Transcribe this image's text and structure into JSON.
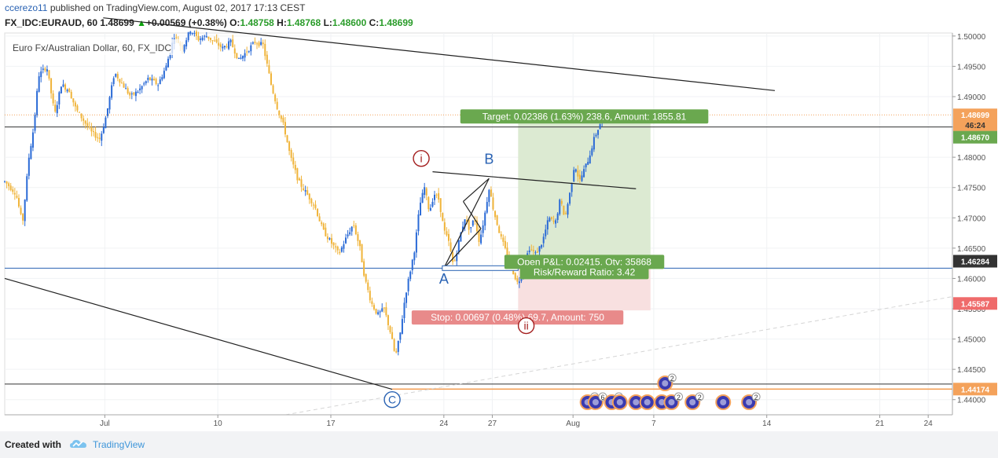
{
  "header": {
    "author": "ccerezo11",
    "published": " published on TradingView.com, August 02, 2017 17:13 CEST",
    "symbol": "FX_IDC:EURAUD, 60",
    "last": "1.48699",
    "change": "+0.00569 (+0.38%)",
    "o_label": "O:",
    "o_value": "1.48758",
    "h_label": "H:",
    "h_value": "1.48768",
    "l_label": "L:",
    "l_value": "1.48600",
    "c_label": "C:",
    "c_value": "1.48699"
  },
  "footer": {
    "created_with": "Created with",
    "brand": "TradingView"
  },
  "colors": {
    "up": "#2a6ad6",
    "down": "#f0b43a",
    "target": "#6aa84f",
    "stop": "#e88a8a",
    "orange": "#f4a25b",
    "pivot": "#a31d1d",
    "wave": "#2962b3"
  },
  "chart_data": {
    "type": "candlestick",
    "title": "Euro Fx/Australian Dollar, 60, FX_IDC",
    "ylim": [
      1.4375,
      1.5005
    ],
    "y_ticks": [
      "1.50000",
      "1.49500",
      "1.49000",
      "1.48500",
      "1.48000",
      "1.47500",
      "1.47000",
      "1.46500",
      "1.46000",
      "1.45500",
      "1.45000",
      "1.44500",
      "1.44000"
    ],
    "x_ticks": [
      {
        "label": "Jul",
        "day": 3
      },
      {
        "label": "10",
        "day": 10
      },
      {
        "label": "17",
        "day": 17
      },
      {
        "label": "24",
        "day": 24
      },
      {
        "label": "27",
        "day": 27
      },
      {
        "label": "Aug",
        "day": 32
      },
      {
        "label": "7",
        "day": 37
      },
      {
        "label": "14",
        "day": 44
      },
      {
        "label": "21",
        "day": 51
      },
      {
        "label": "24",
        "day": 54
      }
    ],
    "xlim_days": [
      -3.2,
      55.5
    ],
    "price_path": [
      [
        -3.2,
        1.476
      ],
      [
        -2.5,
        1.474
      ],
      [
        -2.1,
        1.469
      ],
      [
        -1.7,
        1.48
      ],
      [
        -1.4,
        1.485
      ],
      [
        -1.1,
        1.4935
      ],
      [
        -0.6,
        1.495
      ],
      [
        -0.1,
        1.487
      ],
      [
        0.3,
        1.492
      ],
      [
        0.8,
        1.491
      ],
      [
        1.2,
        1.488
      ],
      [
        1.7,
        1.486
      ],
      [
        2.2,
        1.484
      ],
      [
        2.7,
        1.483
      ],
      [
        3.1,
        1.487
      ],
      [
        3.6,
        1.494
      ],
      [
        4.1,
        1.492
      ],
      [
        4.6,
        1.49
      ],
      [
        5.1,
        1.491
      ],
      [
        5.7,
        1.493
      ],
      [
        6.3,
        1.492
      ],
      [
        6.8,
        1.495
      ],
      [
        7.3,
        1.5
      ],
      [
        7.8,
        1.498
      ],
      [
        8.3,
        1.501
      ],
      [
        8.8,
        1.4995
      ],
      [
        9.3,
        1.5
      ],
      [
        9.8,
        1.499
      ],
      [
        10.3,
        1.498
      ],
      [
        10.8,
        1.499
      ],
      [
        11.3,
        1.496
      ],
      [
        11.8,
        1.4975
      ],
      [
        12.3,
        1.499
      ],
      [
        12.8,
        1.4985
      ],
      [
        13.3,
        1.492
      ],
      [
        13.7,
        1.488
      ],
      [
        14.1,
        1.485
      ],
      [
        14.5,
        1.48
      ],
      [
        15.0,
        1.476
      ],
      [
        15.5,
        1.474
      ],
      [
        16.0,
        1.472
      ],
      [
        16.5,
        1.468
      ],
      [
        17.0,
        1.466
      ],
      [
        17.5,
        1.464
      ],
      [
        18.0,
        1.467
      ],
      [
        18.4,
        1.469
      ],
      [
        18.8,
        1.465
      ],
      [
        19.1,
        1.46
      ],
      [
        19.5,
        1.456
      ],
      [
        19.9,
        1.454
      ],
      [
        20.3,
        1.455
      ],
      [
        20.7,
        1.451
      ],
      [
        21.0,
        1.447
      ],
      [
        21.3,
        1.451
      ],
      [
        21.6,
        1.457
      ],
      [
        21.9,
        1.461
      ],
      [
        22.2,
        1.465
      ],
      [
        22.5,
        1.472
      ],
      [
        22.8,
        1.475
      ],
      [
        23.1,
        1.471
      ],
      [
        23.4,
        1.474
      ],
      [
        23.7,
        1.473
      ],
      [
        24.0,
        1.468
      ],
      [
        24.3,
        1.466
      ],
      [
        24.6,
        1.462
      ],
      [
        25.0,
        1.467
      ],
      [
        25.3,
        1.47
      ],
      [
        25.6,
        1.468
      ],
      [
        25.9,
        1.47
      ],
      [
        26.2,
        1.466
      ],
      [
        26.5,
        1.47
      ],
      [
        26.8,
        1.475
      ],
      [
        27.1,
        1.471
      ],
      [
        27.5,
        1.467
      ],
      [
        27.9,
        1.464
      ],
      [
        28.3,
        1.461
      ],
      [
        28.6,
        1.459
      ],
      [
        28.9,
        1.462
      ],
      [
        29.3,
        1.465
      ],
      [
        29.7,
        1.464
      ],
      [
        30.1,
        1.466
      ],
      [
        30.5,
        1.47
      ],
      [
        30.9,
        1.469
      ],
      [
        31.2,
        1.473
      ],
      [
        31.5,
        1.47
      ],
      [
        31.8,
        1.474
      ],
      [
        32.1,
        1.479
      ],
      [
        32.4,
        1.476
      ],
      [
        32.7,
        1.478
      ],
      [
        33.0,
        1.48
      ],
      [
        33.3,
        1.483
      ],
      [
        33.6,
        1.485
      ],
      [
        33.9,
        1.487
      ],
      [
        34.2,
        1.487
      ]
    ],
    "trend_lines": [
      {
        "from": [
          2.9,
          1.503
        ],
        "to": [
          44.5,
          1.491
        ]
      },
      {
        "from": [
          -3.2,
          1.46
        ],
        "to": [
          20.8,
          1.4417
        ]
      },
      {
        "from": [
          23.3,
          1.4776
        ],
        "to": [
          35.9,
          1.4748
        ]
      },
      {
        "from": [
          24.0,
          1.4617
        ],
        "to": [
          26.8,
          1.4765
        ],
        "kind": "channel"
      },
      {
        "from": [
          25.2,
          1.4727
        ],
        "to": [
          26.8,
          1.4765
        ],
        "kind": "channel"
      },
      {
        "from": [
          24.0,
          1.4617
        ],
        "to": [
          26.3,
          1.4682
        ],
        "kind": "channel"
      },
      {
        "from": [
          25.2,
          1.4727
        ],
        "to": [
          26.3,
          1.4682
        ],
        "kind": "channel"
      }
    ],
    "dashed_line": {
      "from": [
        14.2,
        1.4375
      ],
      "to": [
        55.5,
        1.457
      ]
    },
    "h_lines": [
      {
        "price": 1.485,
        "color": "#333333",
        "style": "solid"
      },
      {
        "price": 1.4617,
        "color": "#2962b3",
        "style": "solid"
      },
      {
        "price": 1.44257,
        "color": "#333333",
        "style": "solid"
      },
      {
        "price": 1.44174,
        "color": "#f4a25b",
        "style": "solid",
        "x_from": 20.8
      },
      {
        "price": 1.48699,
        "color": "#f4a25b",
        "style": "dotted"
      }
    ],
    "position": {
      "x_from": 28.6,
      "x_to": 36.8,
      "entry": 1.4617,
      "target": 1.48556,
      "stop": 1.45473,
      "target_label": "Target: 0.02386 (1.63%) 238.6, Amount: 1855.81",
      "stop_label": "Stop: 0.00697 (0.48%) 69.7, Amount: 750",
      "pnl_label": "Open P&L: 0.02415, Qty: 35868",
      "rr_label": "Risk/Reward Ratio: 3.42"
    },
    "waves": [
      {
        "label": "i",
        "x": 22.6,
        "price": 1.4798,
        "style": "circle",
        "color": "#a31d1d"
      },
      {
        "label": "ii",
        "x": 29.1,
        "price": 1.4522,
        "style": "circle",
        "color": "#a31d1d"
      },
      {
        "label": "A",
        "x": 24.0,
        "price": 1.4599,
        "style": "text",
        "color": "#2962b3"
      },
      {
        "label": "B",
        "x": 26.8,
        "price": 1.4797,
        "style": "text",
        "color": "#2962b3"
      },
      {
        "label": "C",
        "x": 20.8,
        "price": 1.44,
        "style": "circle",
        "color": "#2962b3"
      }
    ],
    "axis_labels": [
      {
        "text": "1.48699",
        "price": 1.48699,
        "bg": "#f4a25b",
        "fg": "#ffffff"
      },
      {
        "text": "46:24",
        "price": 1.48535,
        "bg": "#f4a25b",
        "fg": "#333333"
      },
      {
        "text": "1.48670",
        "price": 1.4833,
        "bg": "#6aa84f",
        "fg": "#ffffff"
      },
      {
        "text": "1.46284",
        "price": 1.46284,
        "bg": "#333333",
        "fg": "#ffffff"
      },
      {
        "text": "1.45587",
        "price": 1.45587,
        "bg": "#ef6b6b",
        "fg": "#ffffff"
      },
      {
        "text": "1.44174",
        "price": 1.44174,
        "bg": "#f4a25b",
        "fg": "#ffffff"
      }
    ],
    "events": [
      {
        "x": 32.9,
        "label": "3"
      },
      {
        "x": 33.4,
        "label": "6"
      },
      {
        "x": 34.4,
        "label": "3"
      },
      {
        "x": 34.9,
        "label": ""
      },
      {
        "x": 35.9,
        "label": ""
      },
      {
        "x": 36.6,
        "label": ""
      },
      {
        "x": 37.5,
        "label": ""
      },
      {
        "x": 38.1,
        "label": "2"
      },
      {
        "x": 39.4,
        "label": "2"
      },
      {
        "x": 41.3,
        "label": ""
      },
      {
        "x": 42.9,
        "label": "2"
      },
      {
        "x": 37.7,
        "label": "2",
        "row": "upper"
      }
    ]
  }
}
